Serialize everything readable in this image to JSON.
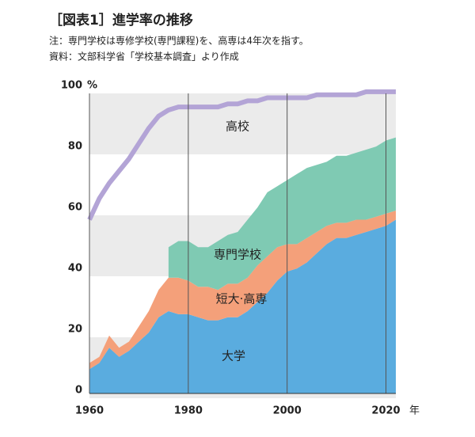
{
  "chart_data": {
    "type": "area",
    "title": "［図表1］進学率の推移",
    "subtitle": [
      "注：専門学校は専修学校(専門課程)を、高専は4年次を指す。",
      "資料：文部科学省「学校基本調査」より作成"
    ],
    "y_unit": "%",
    "x_unit": "年",
    "x": [
      1960,
      1962,
      1964,
      1966,
      1968,
      1970,
      1972,
      1974,
      1976,
      1978,
      1980,
      1982,
      1984,
      1986,
      1988,
      1990,
      1992,
      1994,
      1996,
      1998,
      2000,
      2002,
      2004,
      2006,
      2008,
      2010,
      2012,
      2014,
      2016,
      2018,
      2020,
      2022
    ],
    "xlim": [
      1960,
      2022
    ],
    "xticks": [
      1960,
      1980,
      2000,
      2020
    ],
    "ylim": [
      0,
      100
    ],
    "yticks": [
      0,
      20,
      40,
      60,
      80,
      100
    ],
    "bands": true,
    "series": [
      {
        "name": "大学",
        "color": "#5aacdf",
        "style": "stack",
        "values": [
          8,
          10,
          15,
          12,
          14,
          17,
          20,
          25,
          27,
          26,
          26,
          25,
          24,
          24,
          25,
          25,
          27,
          30,
          33,
          37,
          40,
          41,
          43,
          46,
          49,
          51,
          51,
          52,
          53,
          54,
          55,
          57
        ]
      },
      {
        "name": "短大·高専",
        "color": "#f4a07a",
        "style": "stack",
        "values": [
          2,
          2,
          4,
          3,
          3,
          5,
          7,
          9,
          11,
          12,
          11,
          10,
          11,
          10,
          11,
          11,
          11,
          12,
          12,
          11,
          9,
          8,
          8,
          7,
          6,
          5,
          5,
          5,
          4,
          4,
          4,
          3
        ]
      },
      {
        "name": "専門学校",
        "color": "#7fcab3",
        "style": "stack",
        "values": [
          null,
          null,
          null,
          null,
          null,
          null,
          null,
          null,
          10,
          12,
          13,
          13,
          13,
          16,
          16,
          17,
          19,
          19,
          21,
          20,
          21,
          23,
          23,
          22,
          21,
          22,
          22,
          22,
          23,
          23,
          24,
          24
        ]
      },
      {
        "name": "高校",
        "color": "#b3a4d6",
        "style": "line",
        "values": [
          57,
          64,
          69,
          73,
          77,
          82,
          87,
          91,
          93,
          94,
          94,
          94,
          94,
          94,
          95,
          95,
          96,
          96,
          97,
          97,
          97,
          97,
          97,
          98,
          98,
          98,
          98,
          98,
          99,
          99,
          99,
          99
        ]
      }
    ]
  }
}
